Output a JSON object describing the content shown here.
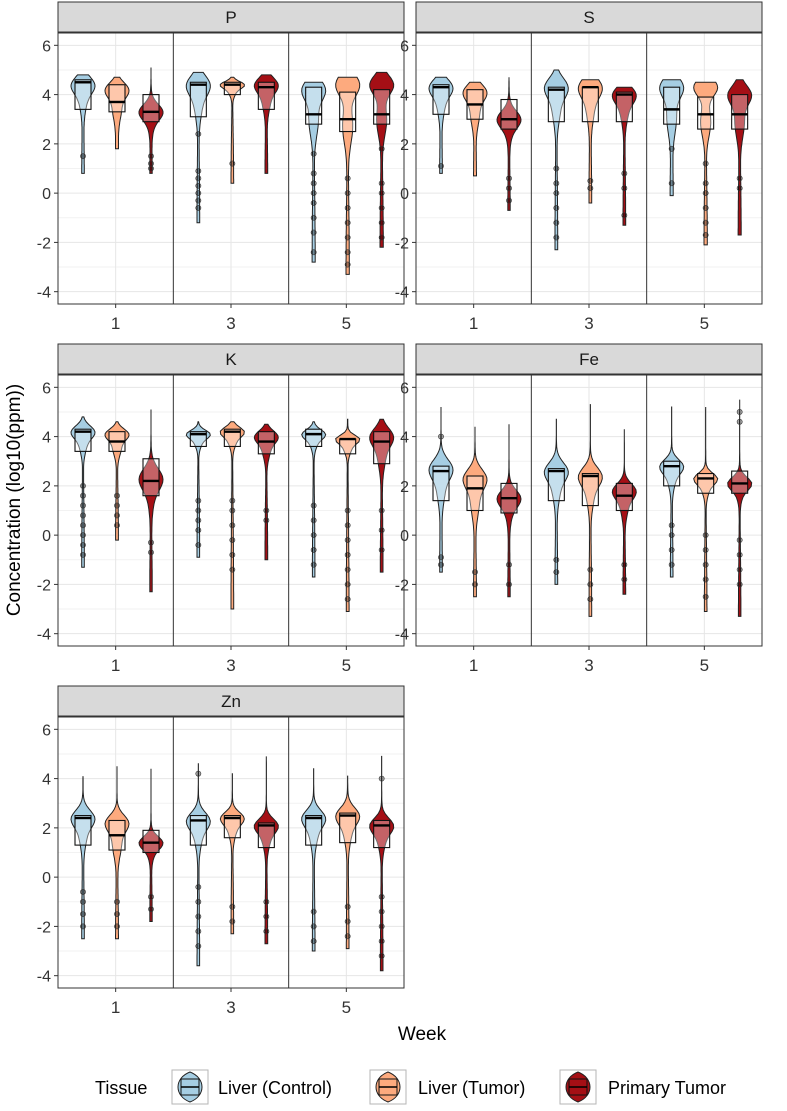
{
  "ylabel": "Concentration (log10(ppm))",
  "xlabel": "Week",
  "legend": {
    "title": "Tissue",
    "items": [
      {
        "label": "Liver (Control)",
        "color": "#a6cee3"
      },
      {
        "label": "Liver (Tumor)",
        "color": "#fdaa7e"
      },
      {
        "label": "Primary Tumor",
        "color": "#a50f15"
      }
    ]
  },
  "chart_data": {
    "type": "violin",
    "facets": [
      "P",
      "S",
      "K",
      "Fe",
      "Zn"
    ],
    "weeks": [
      "1",
      "3",
      "5"
    ],
    "ylim": [
      -4.5,
      6.5
    ],
    "yticks": [
      -4,
      -2,
      0,
      2,
      4,
      6
    ],
    "grid": true,
    "legend_position": "bottom",
    "panels": [
      {
        "element": "P",
        "groups": [
          [
            {
              "min": 0.8,
              "q1": 3.4,
              "median": 4.5,
              "q3": 4.6,
              "max": 4.8,
              "mode": 4.4,
              "out": [
                1.5
              ]
            },
            {
              "min": 1.8,
              "q1": 3.3,
              "median": 3.7,
              "q3": 4.4,
              "max": 4.7,
              "mode": 4.2
            },
            {
              "min": 0.8,
              "q1": 2.9,
              "median": 3.3,
              "q3": 4.0,
              "max": 5.1,
              "mode": 3.3,
              "out": [
                1.0,
                1.2,
                1.5
              ]
            }
          ],
          [
            {
              "min": -1.2,
              "q1": 3.1,
              "median": 4.4,
              "q3": 4.5,
              "max": 4.9,
              "mode": 4.4,
              "out": [
                -0.6,
                -0.3,
                0.0,
                0.3,
                0.6,
                0.9,
                2.4
              ]
            },
            {
              "min": 0.4,
              "q1": 4.0,
              "median": 4.4,
              "q3": 4.5,
              "max": 4.7,
              "mode": 4.4,
              "out": [
                1.2
              ]
            },
            {
              "min": 0.8,
              "q1": 3.4,
              "median": 4.3,
              "q3": 4.5,
              "max": 4.8,
              "mode": 4.4
            }
          ],
          [
            {
              "min": -2.8,
              "q1": 2.8,
              "median": 3.2,
              "q3": 4.3,
              "max": 4.5,
              "mode": 4.2,
              "out": [
                -2.4,
                -1.6,
                -1.0,
                -0.4,
                0.0,
                0.4,
                0.8,
                1.6
              ]
            },
            {
              "min": -3.3,
              "q1": 2.5,
              "median": 3.0,
              "q3": 4.1,
              "max": 4.7,
              "mode": 4.4,
              "out": [
                -2.9,
                -2.4,
                -1.8,
                -1.2,
                -0.6,
                0.0,
                0.6
              ]
            },
            {
              "min": -2.2,
              "q1": 2.8,
              "median": 3.2,
              "q3": 4.2,
              "max": 4.9,
              "mode": 4.4,
              "out": [
                -1.8,
                -1.2,
                -0.6,
                0.0,
                0.4,
                1.8
              ]
            }
          ]
        ]
      },
      {
        "element": "S",
        "groups": [
          [
            {
              "min": 0.8,
              "q1": 3.2,
              "median": 4.3,
              "q3": 4.4,
              "max": 4.7,
              "mode": 4.3,
              "out": [
                1.1
              ]
            },
            {
              "min": 0.7,
              "q1": 3.0,
              "median": 3.6,
              "q3": 4.2,
              "max": 4.5,
              "mode": 4.1
            },
            {
              "min": -0.7,
              "q1": 2.6,
              "median": 3.0,
              "q3": 3.8,
              "max": 4.7,
              "mode": 3.0,
              "out": [
                -0.3,
                0.2,
                0.6
              ]
            }
          ],
          [
            {
              "min": -2.3,
              "q1": 2.9,
              "median": 4.2,
              "q3": 4.3,
              "max": 5.0,
              "mode": 4.3,
              "out": [
                -1.8,
                -1.2,
                -0.6,
                0.0,
                0.4,
                1.0
              ]
            },
            {
              "min": -0.4,
              "q1": 2.9,
              "median": 4.3,
              "q3": 4.3,
              "max": 4.6,
              "mode": 4.3,
              "out": [
                0.2,
                0.5
              ]
            },
            {
              "min": -1.3,
              "q1": 2.9,
              "median": 4.0,
              "q3": 4.1,
              "max": 4.3,
              "mode": 4.0,
              "out": [
                -0.9,
                0.2,
                0.8
              ]
            }
          ],
          [
            {
              "min": -0.1,
              "q1": 2.8,
              "median": 3.4,
              "q3": 4.3,
              "max": 4.6,
              "mode": 4.3,
              "out": [
                0.4,
                1.8
              ]
            },
            {
              "min": -2.1,
              "q1": 2.6,
              "median": 3.2,
              "q3": 3.9,
              "max": 4.5,
              "mode": 4.3,
              "out": [
                -1.7,
                -1.2,
                -0.6,
                0.0,
                0.4,
                1.2
              ]
            },
            {
              "min": -1.7,
              "q1": 2.6,
              "median": 3.2,
              "q3": 4.0,
              "max": 4.6,
              "mode": 4.0,
              "out": [
                0.2,
                0.6
              ]
            }
          ]
        ]
      },
      {
        "element": "K",
        "groups": [
          [
            {
              "min": -1.3,
              "q1": 3.4,
              "median": 4.2,
              "q3": 4.3,
              "max": 4.8,
              "mode": 4.2,
              "out": [
                -0.8,
                -0.4,
                0.0,
                0.4,
                0.8,
                1.2,
                1.6,
                2.0
              ]
            },
            {
              "min": -0.2,
              "q1": 3.4,
              "median": 3.8,
              "q3": 4.2,
              "max": 4.6,
              "mode": 4.1,
              "out": [
                0.4,
                0.8,
                1.2,
                1.6
              ]
            },
            {
              "min": -2.3,
              "q1": 1.6,
              "median": 2.2,
              "q3": 3.1,
              "max": 5.1,
              "mode": 2.3,
              "out": [
                -0.7,
                -0.3
              ]
            }
          ],
          [
            {
              "min": -0.9,
              "q1": 3.6,
              "median": 4.1,
              "q3": 4.2,
              "max": 4.6,
              "mode": 4.1,
              "out": [
                -0.4,
                0.2,
                0.6,
                1.0,
                1.4
              ]
            },
            {
              "min": -3.0,
              "q1": 3.6,
              "median": 4.2,
              "q3": 4.3,
              "max": 4.6,
              "mode": 4.2,
              "out": [
                -1.4,
                -0.8,
                -0.2,
                0.4,
                1.0,
                1.4
              ]
            },
            {
              "min": -1.0,
              "q1": 3.3,
              "median": 3.8,
              "q3": 4.2,
              "max": 4.5,
              "mode": 4.0,
              "out": [
                0.6,
                1.0
              ]
            }
          ],
          [
            {
              "min": -1.7,
              "q1": 3.6,
              "median": 4.1,
              "q3": 4.3,
              "max": 4.6,
              "mode": 4.1,
              "out": [
                -1.2,
                -0.6,
                0.0,
                0.6,
                1.2
              ]
            },
            {
              "min": -3.1,
              "q1": 3.3,
              "median": 3.9,
              "q3": 3.9,
              "max": 4.7,
              "mode": 3.9,
              "out": [
                -2.6,
                -2.0,
                -1.4,
                -0.8,
                -0.2,
                0.4,
                1.0
              ]
            },
            {
              "min": -1.5,
              "q1": 2.9,
              "median": 3.8,
              "q3": 4.2,
              "max": 4.7,
              "mode": 4.0,
              "out": [
                -0.6,
                0.2,
                1.0
              ]
            }
          ]
        ]
      },
      {
        "element": "Fe",
        "groups": [
          [
            {
              "min": -1.5,
              "q1": 1.4,
              "median": 2.6,
              "q3": 2.8,
              "max": 5.2,
              "mode": 2.7,
              "out": [
                -1.2,
                -0.9,
                4.0
              ]
            },
            {
              "min": -2.5,
              "q1": 1.0,
              "median": 1.9,
              "q3": 2.4,
              "max": 4.4,
              "mode": 2.3,
              "out": [
                -2.0,
                -1.5
              ]
            },
            {
              "min": -2.5,
              "q1": 0.9,
              "median": 1.5,
              "q3": 2.1,
              "max": 4.5,
              "mode": 1.5,
              "out": [
                -2.0,
                -1.2
              ]
            }
          ],
          [
            {
              "min": -2.0,
              "q1": 1.4,
              "median": 2.6,
              "q3": 2.7,
              "max": 4.7,
              "mode": 2.6,
              "out": [
                -1.5,
                -1.0
              ]
            },
            {
              "min": -3.3,
              "q1": 1.2,
              "median": 2.4,
              "q3": 2.5,
              "max": 5.3,
              "mode": 2.4,
              "out": [
                -2.6,
                -2.0,
                -1.4
              ]
            },
            {
              "min": -2.4,
              "q1": 1.0,
              "median": 1.6,
              "q3": 2.1,
              "max": 4.3,
              "mode": 1.8,
              "out": [
                -1.8,
                -1.2
              ]
            }
          ],
          [
            {
              "min": -1.7,
              "q1": 2.0,
              "median": 2.8,
              "q3": 3.0,
              "max": 5.2,
              "mode": 2.8,
              "out": [
                -1.2,
                -0.6,
                0.0,
                0.4
              ]
            },
            {
              "min": -3.1,
              "q1": 1.7,
              "median": 2.3,
              "q3": 2.5,
              "max": 5.2,
              "mode": 2.3,
              "out": [
                -2.5,
                -1.8,
                -1.2,
                -0.6,
                0.0
              ]
            },
            {
              "min": -3.3,
              "q1": 1.7,
              "median": 2.1,
              "q3": 2.6,
              "max": 5.5,
              "mode": 2.1,
              "out": [
                -2.0,
                -1.4,
                -0.8,
                -0.2,
                4.6,
                5.0
              ]
            }
          ]
        ]
      },
      {
        "element": "Zn",
        "groups": [
          [
            {
              "min": -2.5,
              "q1": 1.3,
              "median": 2.4,
              "q3": 2.5,
              "max": 4.1,
              "mode": 2.4,
              "out": [
                -2.0,
                -1.5,
                -1.0,
                -0.6
              ]
            },
            {
              "min": -2.5,
              "q1": 1.1,
              "median": 1.7,
              "q3": 2.3,
              "max": 4.5,
              "mode": 2.2,
              "out": [
                -2.0,
                -1.5,
                -1.0
              ]
            },
            {
              "min": -1.8,
              "q1": 1.0,
              "median": 1.4,
              "q3": 1.9,
              "max": 4.4,
              "mode": 1.4,
              "out": [
                -1.3,
                -0.8
              ]
            }
          ],
          [
            {
              "min": -3.6,
              "q1": 1.3,
              "median": 2.3,
              "q3": 2.5,
              "max": 4.6,
              "mode": 2.3,
              "out": [
                -2.8,
                -2.2,
                -1.6,
                -1.0,
                -0.4,
                4.2
              ]
            },
            {
              "min": -2.3,
              "q1": 1.6,
              "median": 2.4,
              "q3": 2.5,
              "max": 4.2,
              "mode": 2.4,
              "out": [
                -1.8,
                -1.2
              ]
            },
            {
              "min": -2.7,
              "q1": 1.2,
              "median": 2.1,
              "q3": 2.2,
              "max": 4.9,
              "mode": 2.1,
              "out": [
                -2.2,
                -1.6,
                -1.0
              ]
            }
          ],
          [
            {
              "min": -3.0,
              "q1": 1.3,
              "median": 2.4,
              "q3": 2.5,
              "max": 4.4,
              "mode": 2.4,
              "out": [
                -2.6,
                -2.0,
                -1.4
              ]
            },
            {
              "min": -2.9,
              "q1": 1.4,
              "median": 2.5,
              "q3": 2.6,
              "max": 4.1,
              "mode": 2.5,
              "out": [
                -2.4,
                -1.8,
                -1.2
              ]
            },
            {
              "min": -3.8,
              "q1": 1.2,
              "median": 2.1,
              "q3": 2.3,
              "max": 4.9,
              "mode": 2.1,
              "out": [
                -3.2,
                -2.6,
                -2.0,
                -1.4,
                -0.8,
                4.0
              ]
            }
          ]
        ]
      }
    ]
  }
}
